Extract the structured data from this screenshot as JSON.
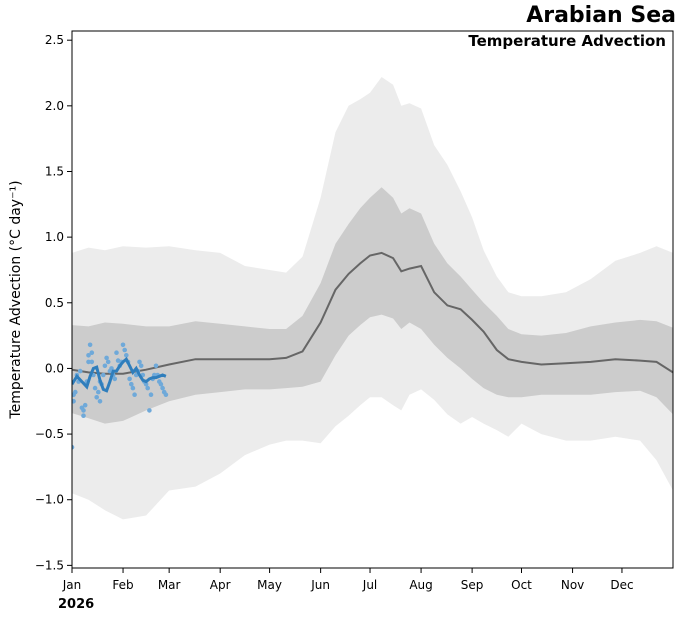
{
  "chart_data": {
    "type": "line",
    "title": "Arabian Sea",
    "subtitle": "Temperature Advection",
    "ylabel": "Temperature Advection (°C day⁻¹)",
    "xlabel": "",
    "year_label": "2026",
    "ylim": [
      -1.52,
      2.57
    ],
    "xlim": [
      0,
      365
    ],
    "yticks": [
      -1.5,
      -1.0,
      -0.5,
      0.0,
      0.5,
      1.0,
      1.5,
      2.0,
      2.5
    ],
    "ytick_labels": [
      "−1.5",
      "−1.0",
      "−0.5",
      "0.0",
      "0.5",
      "1.0",
      "1.5",
      "2.0",
      "2.5"
    ],
    "xtick_days": [
      0,
      31,
      59,
      90,
      120,
      151,
      181,
      212,
      243,
      273,
      304,
      334
    ],
    "xtick_labels": [
      "Jan",
      "Feb",
      "Mar",
      "Apr",
      "May",
      "Jun",
      "Jul",
      "Aug",
      "Sep",
      "Oct",
      "Nov",
      "Dec"
    ],
    "climatology": {
      "days": [
        0,
        10,
        20,
        31,
        45,
        59,
        75,
        90,
        105,
        120,
        130,
        140,
        151,
        160,
        168,
        175,
        181,
        188,
        195,
        200,
        205,
        212,
        220,
        228,
        236,
        243,
        250,
        258,
        265,
        273,
        285,
        300,
        315,
        330,
        345,
        355,
        365
      ],
      "mean": [
        -0.01,
        -0.03,
        -0.04,
        -0.04,
        -0.01,
        0.03,
        0.07,
        0.07,
        0.07,
        0.07,
        0.08,
        0.13,
        0.35,
        0.6,
        0.72,
        0.8,
        0.86,
        0.88,
        0.84,
        0.74,
        0.76,
        0.78,
        0.58,
        0.48,
        0.45,
        0.37,
        0.28,
        0.14,
        0.07,
        0.05,
        0.03,
        0.04,
        0.05,
        0.07,
        0.06,
        0.05,
        -0.03
      ],
      "p25": [
        -0.34,
        -0.38,
        -0.42,
        -0.4,
        -0.32,
        -0.25,
        -0.2,
        -0.18,
        -0.16,
        -0.16,
        -0.15,
        -0.14,
        -0.1,
        0.1,
        0.25,
        0.33,
        0.39,
        0.41,
        0.38,
        0.3,
        0.35,
        0.3,
        0.18,
        0.08,
        0.0,
        -0.08,
        -0.15,
        -0.2,
        -0.22,
        -0.22,
        -0.2,
        -0.2,
        -0.2,
        -0.18,
        -0.17,
        -0.22,
        -0.35
      ],
      "p75": [
        0.33,
        0.32,
        0.35,
        0.34,
        0.32,
        0.32,
        0.36,
        0.34,
        0.32,
        0.3,
        0.3,
        0.4,
        0.65,
        0.95,
        1.1,
        1.22,
        1.3,
        1.38,
        1.3,
        1.18,
        1.22,
        1.18,
        0.95,
        0.8,
        0.7,
        0.6,
        0.5,
        0.4,
        0.3,
        0.26,
        0.25,
        0.27,
        0.32,
        0.35,
        0.37,
        0.36,
        0.31
      ],
      "p05": [
        -0.95,
        -1.0,
        -1.08,
        -1.15,
        -1.12,
        -0.93,
        -0.9,
        -0.8,
        -0.66,
        -0.58,
        -0.55,
        -0.55,
        -0.57,
        -0.44,
        -0.36,
        -0.28,
        -0.22,
        -0.22,
        -0.28,
        -0.32,
        -0.2,
        -0.16,
        -0.24,
        -0.35,
        -0.42,
        -0.37,
        -0.42,
        -0.47,
        -0.52,
        -0.42,
        -0.5,
        -0.55,
        -0.55,
        -0.52,
        -0.55,
        -0.7,
        -0.93
      ],
      "p95": [
        0.88,
        0.92,
        0.9,
        0.93,
        0.92,
        0.93,
        0.9,
        0.88,
        0.78,
        0.75,
        0.73,
        0.85,
        1.3,
        1.8,
        2.0,
        2.05,
        2.1,
        2.22,
        2.16,
        2.0,
        2.02,
        1.98,
        1.7,
        1.55,
        1.35,
        1.15,
        0.9,
        0.7,
        0.58,
        0.55,
        0.55,
        0.58,
        0.68,
        0.82,
        0.88,
        0.93,
        0.88
      ]
    },
    "current_year": {
      "days": [
        0,
        3,
        6,
        9,
        11,
        13,
        15,
        17,
        19,
        21,
        23,
        25,
        27,
        29,
        31,
        33,
        35,
        37,
        39,
        41,
        43,
        45,
        47,
        49,
        51,
        53,
        55,
        57
      ],
      "values": [
        -0.12,
        -0.06,
        -0.1,
        -0.14,
        -0.06,
        0.0,
        0.01,
        -0.09,
        -0.16,
        -0.17,
        -0.1,
        -0.02,
        -0.02,
        0.02,
        0.05,
        0.07,
        0.02,
        -0.03,
        0.0,
        -0.05,
        -0.09,
        -0.1,
        -0.08,
        -0.07,
        -0.07,
        -0.06,
        -0.05,
        -0.06
      ]
    },
    "daily_points": {
      "days": [
        0,
        1,
        1,
        2,
        3,
        4,
        5,
        6,
        7,
        7,
        8,
        9,
        10,
        10,
        11,
        12,
        12,
        13,
        14,
        15,
        16,
        17,
        17,
        18,
        19,
        20,
        21,
        22,
        23,
        24,
        25,
        26,
        27,
        28,
        29,
        30,
        31,
        32,
        33,
        34,
        35,
        36,
        37,
        38,
        39,
        40,
        41,
        42,
        43,
        44,
        45,
        46,
        47,
        48,
        49,
        50,
        51,
        52,
        53,
        54,
        55,
        56,
        57
      ],
      "values": [
        -0.6,
        -0.25,
        -0.2,
        -0.18,
        -0.05,
        -0.1,
        -0.02,
        -0.3,
        -0.36,
        -0.32,
        -0.28,
        -0.1,
        0.05,
        0.1,
        0.18,
        0.12,
        0.05,
        -0.05,
        -0.15,
        -0.22,
        -0.18,
        -0.25,
        -0.1,
        -0.12,
        -0.05,
        0.02,
        0.08,
        0.05,
        -0.02,
        0.0,
        -0.05,
        -0.08,
        0.12,
        0.06,
        0.02,
        0.05,
        0.18,
        0.14,
        0.1,
        0.05,
        -0.08,
        -0.12,
        -0.15,
        -0.2,
        -0.05,
        -0.02,
        0.05,
        0.02,
        -0.05,
        -0.1,
        -0.12,
        -0.15,
        -0.32,
        -0.2,
        -0.08,
        -0.05,
        0.02,
        -0.05,
        -0.1,
        -0.12,
        -0.15,
        -0.18,
        -0.2
      ]
    },
    "colors": {
      "outer_band": "#ececec",
      "inner_band": "#cccccc",
      "mean_line": "#666666",
      "current_line": "#2f7ebc",
      "daily_points": "#6fa9d9",
      "axis": "#000000"
    }
  }
}
